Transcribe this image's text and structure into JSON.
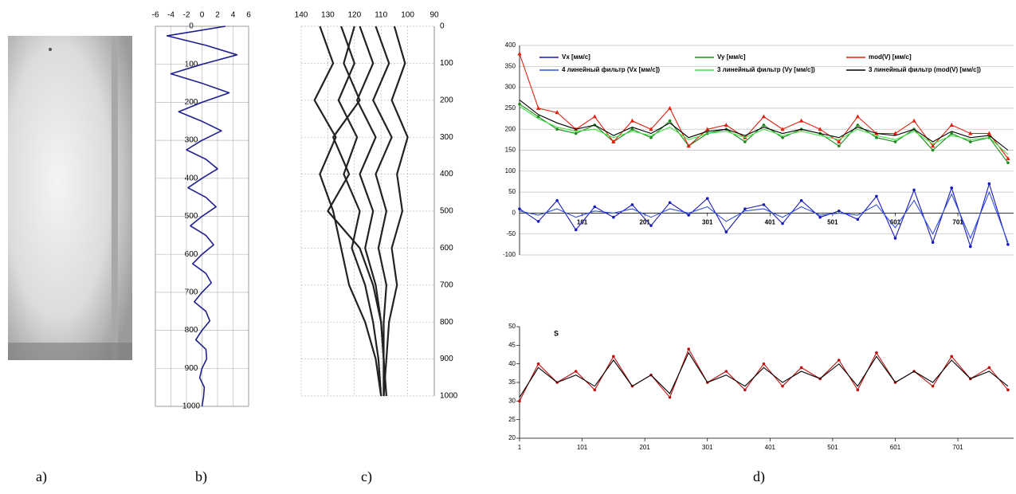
{
  "panel_labels": [
    "a)",
    "b)",
    "c)",
    "d)"
  ],
  "chart_data": [
    {
      "type": "trajectory",
      "xlim": [
        -6,
        6
      ],
      "xticks": [
        -6,
        -4,
        -2,
        0,
        2,
        4,
        6
      ],
      "ylim": [
        0,
        1000
      ],
      "yticks": [
        0,
        100,
        200,
        300,
        400,
        500,
        600,
        700,
        800,
        900,
        1000
      ],
      "grid": true,
      "series": [
        {
          "color": "#1f1f8f",
          "depth": [
            0,
            25,
            50,
            75,
            100,
            125,
            150,
            175,
            200,
            225,
            250,
            275,
            300,
            325,
            350,
            375,
            400,
            425,
            450,
            475,
            500,
            525,
            550,
            575,
            600,
            625,
            650,
            675,
            700,
            725,
            750,
            775,
            800,
            825,
            850,
            875,
            900,
            925,
            950,
            975,
            1000
          ],
          "values": [
            3,
            -4.5,
            0.5,
            4.5,
            0,
            -4,
            0,
            3.5,
            0,
            -3,
            0,
            2.5,
            0,
            -2,
            0.5,
            2,
            0,
            -1.8,
            0.5,
            1.8,
            0,
            -1.5,
            0.5,
            1.5,
            0,
            -1.2,
            0.5,
            1.2,
            0,
            -1,
            0.5,
            1,
            0,
            -0.8,
            0.5,
            0.6,
            0,
            -0.3,
            0.3,
            0.2,
            0
          ]
        }
      ]
    },
    {
      "type": "trajectory",
      "xlim": [
        140,
        90
      ],
      "xticks": [
        140,
        130,
        120,
        110,
        100,
        90
      ],
      "ylim": [
        0,
        1000
      ],
      "yticks": [
        0,
        100,
        200,
        300,
        400,
        500,
        600,
        700,
        800,
        900,
        1000
      ],
      "grid": true,
      "series": [
        {
          "color": "#222222",
          "depth": [
            0,
            100,
            200,
            300,
            400,
            500,
            600,
            700,
            800,
            900,
            1000
          ],
          "values": [
            133,
            128,
            135,
            127,
            133,
            128,
            125,
            122,
            116,
            112,
            110
          ]
        },
        {
          "color": "#222222",
          "depth": [
            0,
            100,
            200,
            300,
            400,
            500,
            600,
            700,
            800,
            900,
            1000
          ],
          "values": [
            125,
            120,
            126,
            119,
            124,
            118,
            121,
            116,
            113,
            111,
            110
          ]
        },
        {
          "color": "#222222",
          "depth": [
            0,
            100,
            200,
            300,
            400,
            500,
            600,
            700,
            800,
            900,
            1000
          ],
          "values": [
            118,
            113,
            119,
            112,
            118,
            113,
            116,
            112,
            110,
            109,
            109
          ]
        },
        {
          "color": "#222222",
          "depth": [
            0,
            100,
            200,
            300,
            400,
            500,
            600,
            700,
            800,
            900,
            1000
          ],
          "values": [
            112,
            107,
            113,
            106,
            112,
            108,
            111,
            108,
            109,
            109,
            109
          ]
        },
        {
          "color": "#222222",
          "depth": [
            0,
            100,
            200,
            300,
            400,
            500,
            600,
            700,
            800,
            900,
            1000
          ],
          "values": [
            105,
            101,
            106,
            100,
            104,
            102,
            106,
            104,
            107,
            108,
            109
          ]
        },
        {
          "color": "#222222",
          "depth": [
            0,
            100,
            200,
            300,
            400,
            500,
            600,
            700,
            800,
            900,
            1000
          ],
          "values": [
            120,
            124,
            118,
            128,
            122,
            130,
            118,
            113,
            110,
            109,
            108
          ]
        }
      ]
    },
    {
      "type": "line",
      "x": [
        1,
        31,
        61,
        91,
        121,
        151,
        181,
        211,
        241,
        271,
        301,
        331,
        361,
        391,
        421,
        451,
        481,
        511,
        541,
        571,
        601,
        631,
        661,
        691,
        721,
        751,
        781
      ],
      "xlim": [
        1,
        790
      ],
      "xticks": [
        101,
        201,
        301,
        401,
        501,
        601,
        701
      ],
      "ylim": [
        -100,
        400
      ],
      "yticks": [
        -100,
        -50,
        0,
        50,
        100,
        150,
        200,
        250,
        300,
        350,
        400
      ],
      "grid": true,
      "series": [
        {
          "name": "Vx [мм/с]",
          "color": "#1a1ab8",
          "marker": "circle",
          "values": [
            10,
            -20,
            30,
            -40,
            15,
            -10,
            20,
            -30,
            25,
            -5,
            35,
            -45,
            10,
            20,
            -25,
            30,
            -10,
            5,
            -15,
            40,
            -60,
            55,
            -70,
            60,
            -80,
            70,
            -75
          ]
        },
        {
          "name": "Vy  [мм/с]",
          "color": "#1a8a1a",
          "marker": "circle",
          "values": [
            260,
            230,
            200,
            190,
            210,
            170,
            200,
            180,
            220,
            160,
            190,
            200,
            170,
            210,
            180,
            200,
            190,
            160,
            210,
            180,
            170,
            200,
            150,
            190,
            170,
            180,
            120
          ]
        },
        {
          "name": "mod(V) [мм/с]",
          "color": "#e02010",
          "marker": "triangle",
          "values": [
            380,
            250,
            240,
            200,
            230,
            170,
            220,
            200,
            250,
            160,
            200,
            210,
            180,
            230,
            200,
            220,
            200,
            170,
            230,
            190,
            190,
            220,
            160,
            210,
            190,
            190,
            130
          ]
        },
        {
          "name": "4 линейный фильтр (Vx [мм/с])",
          "color": "#3050e0",
          "values": [
            5,
            -5,
            10,
            -10,
            5,
            0,
            10,
            -10,
            10,
            0,
            15,
            -20,
            5,
            10,
            -10,
            15,
            -5,
            0,
            -5,
            20,
            -35,
            30,
            -50,
            45,
            -60,
            50,
            -70
          ]
        },
        {
          "name": "3 линейный фильтр (Vy [мм/с])",
          "color": "#40e040",
          "values": [
            255,
            225,
            205,
            195,
            200,
            180,
            195,
            185,
            205,
            175,
            190,
            195,
            180,
            200,
            185,
            195,
            185,
            175,
            200,
            185,
            175,
            195,
            165,
            185,
            175,
            180,
            140
          ]
        },
        {
          "name": "3 линейный фильтр (mod(V) [мм/с])",
          "color": "#000000",
          "values": [
            270,
            235,
            215,
            200,
            210,
            185,
            205,
            190,
            215,
            180,
            195,
            200,
            185,
            205,
            190,
            200,
            190,
            180,
            205,
            190,
            185,
            200,
            170,
            195,
            180,
            185,
            150
          ]
        }
      ]
    },
    {
      "type": "line",
      "annotation": "S",
      "x": [
        1,
        31,
        61,
        91,
        121,
        151,
        181,
        211,
        241,
        271,
        301,
        331,
        361,
        391,
        421,
        451,
        481,
        511,
        541,
        571,
        601,
        631,
        661,
        691,
        721,
        751,
        781
      ],
      "xlim": [
        1,
        790
      ],
      "xticks": [
        1,
        101,
        201,
        301,
        401,
        501,
        601,
        701
      ],
      "ylim": [
        20,
        50
      ],
      "yticks": [
        20,
        25,
        30,
        35,
        40,
        45,
        50
      ],
      "grid": false,
      "series": [
        {
          "color": "#c01010",
          "marker": "circle",
          "values": [
            30,
            40,
            35,
            38,
            33,
            42,
            34,
            37,
            31,
            44,
            35,
            38,
            33,
            40,
            34,
            39,
            36,
            41,
            33,
            43,
            35,
            38,
            34,
            42,
            36,
            39,
            33
          ]
        },
        {
          "color": "#000000",
          "values": [
            31,
            39,
            35,
            37,
            34,
            41,
            34,
            37,
            32,
            43,
            35,
            37,
            34,
            39,
            35,
            38,
            36,
            40,
            34,
            42,
            35,
            38,
            35,
            41,
            36,
            38,
            34
          ]
        }
      ]
    }
  ]
}
